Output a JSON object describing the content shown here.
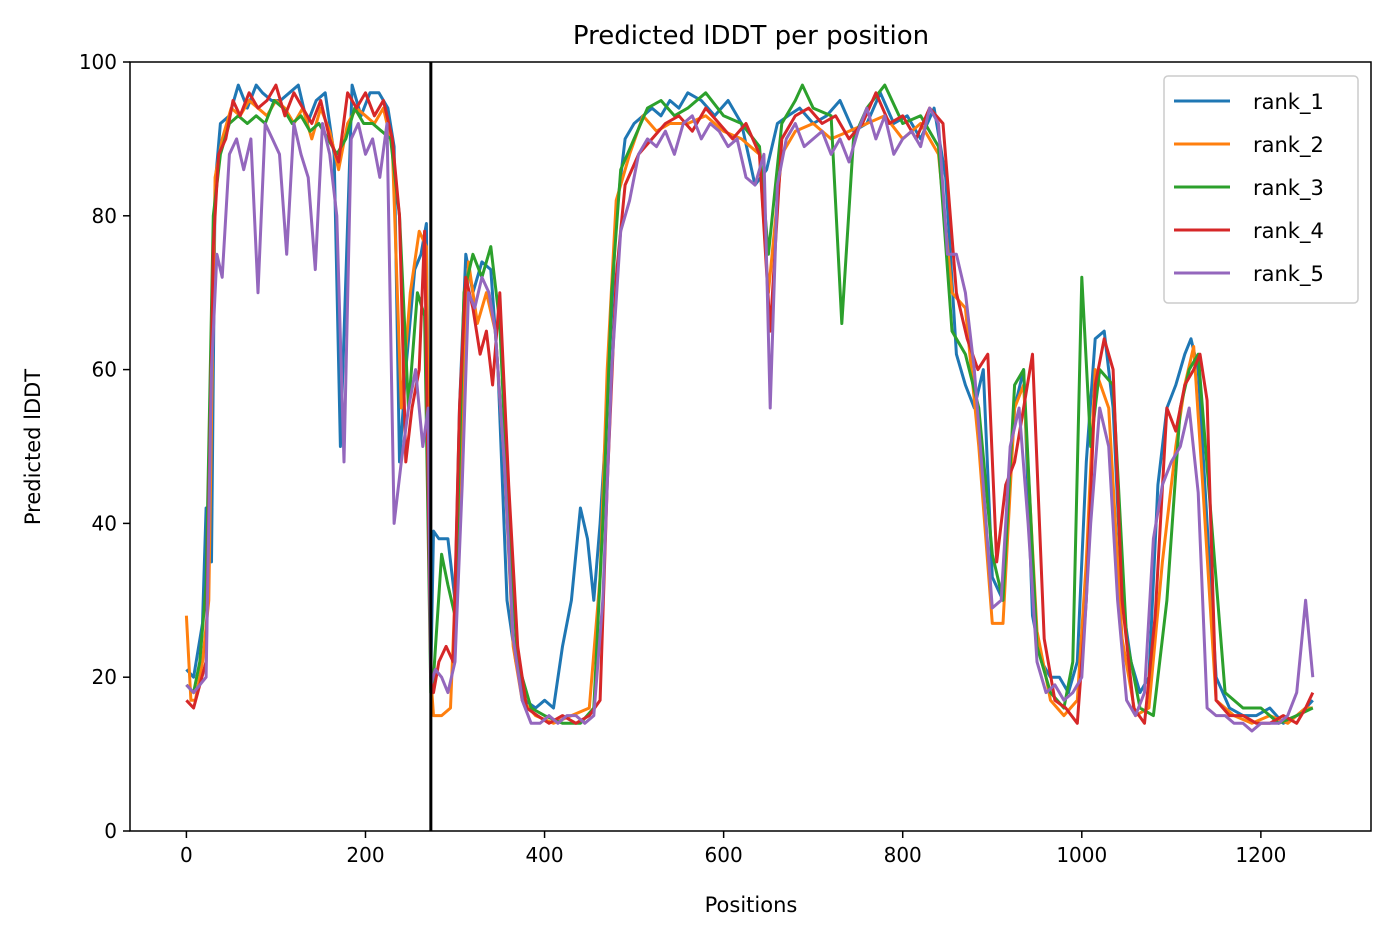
{
  "chart_data": {
    "type": "line",
    "title": "Predicted lDDT per position",
    "xlabel": "Positions",
    "ylabel": "Predicted lDDT",
    "xlim": [
      -63,
      1323
    ],
    "ylim": [
      0,
      100
    ],
    "xticks": [
      0,
      200,
      400,
      600,
      800,
      1000,
      1200
    ],
    "yticks": [
      0,
      20,
      40,
      60,
      80,
      100
    ],
    "grid": false,
    "legend_position": "top-right",
    "vline": {
      "x": 273,
      "color": "#000000"
    },
    "series": [
      {
        "name": "rank_1",
        "color": "#1f77b4",
        "x": [
          0,
          8,
          18,
          22,
          28,
          32,
          38,
          48,
          58,
          68,
          78,
          85,
          95,
          105,
          115,
          125,
          135,
          145,
          155,
          165,
          172,
          185,
          195,
          205,
          215,
          225,
          232,
          238,
          245,
          255,
          262,
          268,
          273,
          276,
          282,
          292,
          300,
          305,
          312,
          320,
          330,
          340,
          348,
          358,
          368,
          378,
          390,
          400,
          410,
          420,
          430,
          440,
          448,
          455,
          462,
          470,
          480,
          490,
          500,
          510,
          520,
          530,
          540,
          550,
          560,
          575,
          590,
          605,
          620,
          635,
          648,
          660,
          672,
          685,
          700,
          715,
          730,
          745,
          760,
          775,
          790,
          805,
          820,
          835,
          848,
          860,
          870,
          880,
          890,
          900,
          912,
          925,
          935,
          945,
          955,
          965,
          975,
          985,
          995,
          1005,
          1015,
          1025,
          1035,
          1045,
          1055,
          1065,
          1075,
          1085,
          1095,
          1105,
          1115,
          1122,
          1130,
          1140,
          1150,
          1165,
          1180,
          1195,
          1210,
          1225,
          1240,
          1250,
          1258
        ],
        "y": [
          21,
          20,
          27,
          42,
          35,
          84,
          92,
          93,
          97,
          94,
          97,
          96,
          95,
          95,
          96,
          97,
          92,
          95,
          96,
          88,
          50,
          97,
          93,
          96,
          96,
          94,
          89,
          48,
          60,
          73,
          75,
          79,
          20,
          39,
          38,
          38,
          30,
          55,
          75,
          70,
          74,
          73,
          60,
          30,
          22,
          17,
          16,
          17,
          16,
          24,
          30,
          42,
          38,
          30,
          40,
          55,
          80,
          90,
          92,
          93,
          94,
          93,
          95,
          94,
          96,
          95,
          93,
          95,
          92,
          84,
          86,
          92,
          93,
          94,
          92,
          93,
          95,
          91,
          92,
          96,
          92,
          93,
          90,
          94,
          85,
          62,
          58,
          55,
          60,
          33,
          30,
          55,
          60,
          28,
          22,
          20,
          20,
          18,
          22,
          48,
          64,
          65,
          55,
          30,
          22,
          18,
          20,
          45,
          55,
          58,
          62,
          64,
          60,
          40,
          20,
          16,
          15,
          15,
          16,
          14,
          15,
          16,
          17
        ]
      },
      {
        "name": "rank_2",
        "color": "#ff7f0e",
        "x": [
          0,
          5,
          10,
          18,
          25,
          32,
          40,
          50,
          60,
          70,
          80,
          90,
          100,
          110,
          120,
          130,
          140,
          150,
          160,
          170,
          180,
          190,
          200,
          210,
          220,
          230,
          240,
          250,
          260,
          268,
          273,
          276,
          285,
          295,
          305,
          315,
          325,
          335,
          345,
          355,
          365,
          375,
          390,
          410,
          430,
          450,
          462,
          470,
          480,
          495,
          510,
          525,
          540,
          560,
          580,
          600,
          620,
          640,
          650,
          665,
          680,
          700,
          720,
          740,
          760,
          780,
          800,
          820,
          840,
          855,
          870,
          885,
          900,
          912,
          925,
          935,
          950,
          965,
          980,
          995,
          1005,
          1015,
          1030,
          1045,
          1060,
          1075,
          1090,
          1105,
          1115,
          1125,
          1135,
          1150,
          1170,
          1190,
          1210,
          1230,
          1250,
          1258
        ],
        "y": [
          28,
          17,
          17,
          22,
          30,
          85,
          90,
          94,
          93,
          95,
          94,
          93,
          95,
          94,
          92,
          94,
          90,
          94,
          91,
          86,
          92,
          94,
          93,
          92,
          94,
          89,
          55,
          70,
          78,
          76,
          20,
          15,
          15,
          16,
          45,
          74,
          66,
          70,
          65,
          48,
          24,
          17,
          15,
          14,
          15,
          16,
          33,
          60,
          82,
          88,
          93,
          91,
          92,
          92,
          93,
          91,
          90,
          88,
          70,
          88,
          91,
          92,
          90,
          91,
          92,
          93,
          90,
          92,
          88,
          70,
          68,
          50,
          27,
          27,
          55,
          58,
          26,
          17,
          15,
          17,
          35,
          60,
          55,
          25,
          15,
          16,
          35,
          50,
          58,
          63,
          45,
          17,
          15,
          14,
          15,
          14,
          16,
          16
        ]
      },
      {
        "name": "rank_3",
        "color": "#2ca02c",
        "x": [
          0,
          8,
          15,
          22,
          30,
          38,
          48,
          58,
          68,
          78,
          88,
          98,
          108,
          118,
          128,
          138,
          148,
          158,
          168,
          178,
          188,
          198,
          208,
          218,
          228,
          238,
          248,
          258,
          266,
          273,
          276,
          285,
          292,
          300,
          310,
          320,
          330,
          340,
          350,
          360,
          370,
          385,
          400,
          420,
          440,
          455,
          465,
          475,
          485,
          500,
          515,
          530,
          545,
          560,
          580,
          600,
          620,
          640,
          650,
          665,
          680,
          688,
          700,
          720,
          732,
          745,
          760,
          780,
          800,
          820,
          840,
          855,
          870,
          885,
          900,
          912,
          925,
          935,
          950,
          965,
          980,
          990,
          1000,
          1010,
          1020,
          1035,
          1050,
          1065,
          1080,
          1095,
          1110,
          1120,
          1130,
          1145,
          1160,
          1180,
          1200,
          1220,
          1240,
          1258
        ],
        "y": [
          19,
          18,
          22,
          32,
          80,
          88,
          92,
          93,
          92,
          93,
          92,
          95,
          94,
          92,
          93,
          91,
          92,
          90,
          88,
          90,
          94,
          92,
          92,
          91,
          90,
          80,
          55,
          70,
          67,
          18,
          20,
          36,
          32,
          28,
          70,
          75,
          72,
          76,
          66,
          40,
          22,
          16,
          15,
          14,
          14,
          16,
          40,
          70,
          86,
          90,
          94,
          95,
          93,
          94,
          96,
          93,
          92,
          89,
          75,
          92,
          95,
          97,
          94,
          93,
          66,
          90,
          94,
          97,
          92,
          93,
          89,
          65,
          62,
          55,
          36,
          30,
          58,
          60,
          24,
          18,
          16,
          22,
          72,
          50,
          60,
          58,
          25,
          16,
          15,
          30,
          55,
          60,
          62,
          40,
          18,
          16,
          16,
          14,
          15,
          16
        ]
      },
      {
        "name": "rank_4",
        "color": "#d62728",
        "x": [
          0,
          8,
          15,
          22,
          30,
          36,
          44,
          52,
          60,
          70,
          80,
          90,
          100,
          110,
          120,
          130,
          140,
          150,
          160,
          170,
          180,
          190,
          200,
          210,
          220,
          230,
          238,
          245,
          252,
          260,
          266,
          273,
          276,
          282,
          290,
          298,
          305,
          312,
          320,
          328,
          335,
          342,
          350,
          360,
          370,
          380,
          392,
          405,
          420,
          435,
          450,
          462,
          470,
          480,
          490,
          505,
          520,
          535,
          550,
          565,
          580,
          595,
          610,
          625,
          640,
          652,
          665,
          680,
          695,
          710,
          725,
          740,
          755,
          770,
          785,
          800,
          815,
          830,
          845,
          860,
          872,
          884,
          895,
          905,
          915,
          925,
          935,
          945,
          958,
          970,
          982,
          995,
          1005,
          1015,
          1025,
          1035,
          1045,
          1058,
          1070,
          1082,
          1095,
          1105,
          1115,
          1125,
          1132,
          1140,
          1150,
          1165,
          1180,
          1195,
          1210,
          1225,
          1240,
          1250,
          1258
        ],
        "y": [
          17,
          16,
          19,
          22,
          76,
          88,
          90,
          95,
          93,
          96,
          94,
          95,
          97,
          93,
          96,
          94,
          92,
          95,
          90,
          87,
          96,
          94,
          96,
          93,
          95,
          90,
          80,
          48,
          55,
          60,
          78,
          20,
          18,
          22,
          24,
          22,
          55,
          72,
          68,
          62,
          65,
          58,
          70,
          45,
          24,
          16,
          15,
          14,
          15,
          14,
          15,
          17,
          45,
          72,
          84,
          88,
          90,
          92,
          93,
          91,
          94,
          92,
          90,
          92,
          88,
          65,
          90,
          93,
          94,
          92,
          93,
          90,
          92,
          96,
          92,
          93,
          90,
          94,
          92,
          70,
          64,
          60,
          62,
          35,
          45,
          48,
          55,
          62,
          25,
          17,
          16,
          14,
          30,
          58,
          64,
          60,
          30,
          16,
          14,
          28,
          55,
          52,
          58,
          60,
          62,
          56,
          17,
          15,
          15,
          14,
          14,
          15,
          14,
          16,
          18
        ]
      },
      {
        "name": "rank_5",
        "color": "#9467bd",
        "x": [
          0,
          8,
          15,
          22,
          28,
          34,
          40,
          48,
          56,
          64,
          72,
          80,
          88,
          96,
          104,
          112,
          120,
          128,
          136,
          144,
          152,
          160,
          168,
          176,
          184,
          192,
          200,
          208,
          216,
          224,
          232,
          240,
          248,
          256,
          264,
          270,
          273,
          278,
          285,
          292,
          300,
          308,
          315,
          322,
          330,
          338,
          345,
          355,
          365,
          375,
          385,
          395,
          405,
          415,
          425,
          435,
          445,
          455,
          465,
          475,
          485,
          495,
          505,
          515,
          525,
          535,
          545,
          555,
          565,
          575,
          585,
          595,
          605,
          615,
          625,
          635,
          645,
          652,
          660,
          670,
          680,
          690,
          700,
          710,
          720,
          730,
          740,
          750,
          760,
          770,
          780,
          790,
          800,
          810,
          820,
          830,
          840,
          850,
          860,
          870,
          880,
          890,
          900,
          910,
          920,
          930,
          940,
          950,
          960,
          970,
          980,
          990,
          1000,
          1010,
          1020,
          1030,
          1040,
          1050,
          1060,
          1070,
          1080,
          1090,
          1100,
          1110,
          1120,
          1130,
          1140,
          1150,
          1160,
          1170,
          1180,
          1190,
          1200,
          1210,
          1220,
          1230,
          1240,
          1245,
          1250,
          1258
        ],
        "y": [
          19,
          18,
          19,
          20,
          60,
          75,
          72,
          88,
          90,
          86,
          90,
          70,
          92,
          90,
          88,
          75,
          92,
          88,
          85,
          73,
          92,
          88,
          80,
          48,
          90,
          92,
          88,
          90,
          85,
          92,
          40,
          48,
          55,
          60,
          50,
          55,
          19,
          21,
          20,
          18,
          22,
          45,
          70,
          68,
          72,
          70,
          65,
          48,
          25,
          17,
          14,
          14,
          15,
          14,
          15,
          15,
          14,
          15,
          30,
          60,
          78,
          82,
          88,
          90,
          89,
          91,
          88,
          92,
          93,
          90,
          92,
          91,
          89,
          90,
          85,
          84,
          88,
          55,
          84,
          90,
          92,
          89,
          90,
          91,
          88,
          90,
          87,
          91,
          94,
          90,
          93,
          88,
          90,
          91,
          89,
          94,
          92,
          75,
          75,
          70,
          60,
          45,
          29,
          30,
          50,
          55,
          40,
          22,
          18,
          19,
          17,
          18,
          20,
          40,
          55,
          50,
          30,
          17,
          15,
          18,
          38,
          45,
          48,
          50,
          55,
          44,
          16,
          15,
          15,
          14,
          14,
          13,
          14,
          14,
          14,
          15,
          18,
          24,
          30,
          20
        ]
      }
    ]
  }
}
